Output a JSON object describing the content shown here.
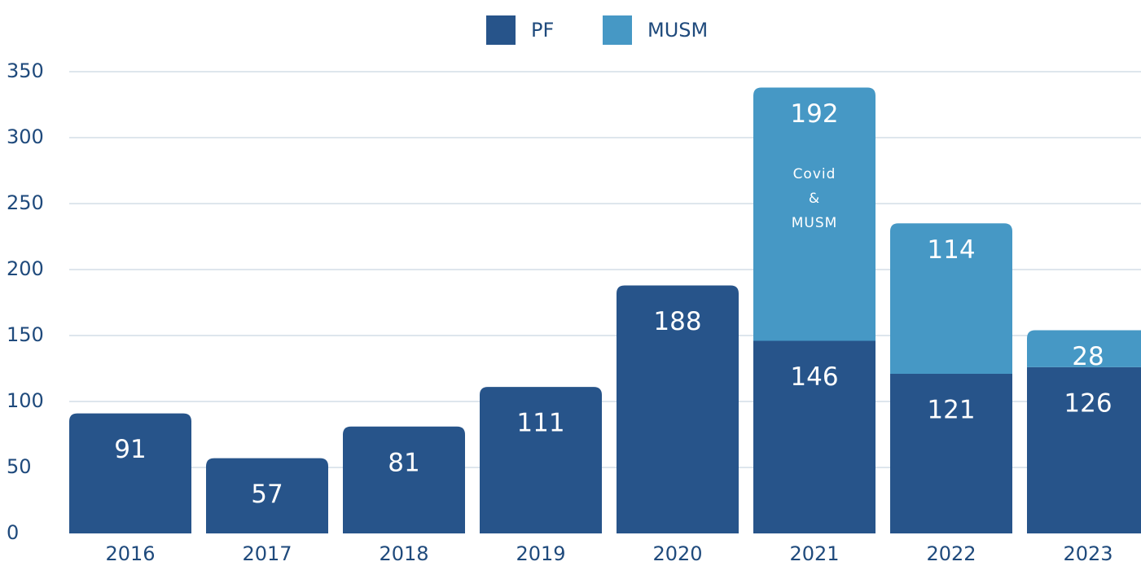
{
  "chart_data": {
    "type": "bar",
    "stacked": true,
    "categories": [
      "2016",
      "2017",
      "2018",
      "2019",
      "2020",
      "2021",
      "2022",
      "2023"
    ],
    "series": [
      {
        "name": "PF",
        "color": "#27548a",
        "values": [
          91,
          57,
          81,
          111,
          188,
          146,
          121,
          126
        ]
      },
      {
        "name": "MUSM",
        "color": "#4698c5",
        "values": [
          null,
          null,
          null,
          null,
          null,
          192,
          114,
          28
        ]
      }
    ],
    "annotation": [
      "Covid",
      "&",
      "MUSM"
    ],
    "ylim": [
      0,
      350
    ],
    "yticks": [
      0,
      50,
      100,
      150,
      200,
      250,
      300,
      350
    ],
    "grid": true,
    "legend": "top"
  }
}
